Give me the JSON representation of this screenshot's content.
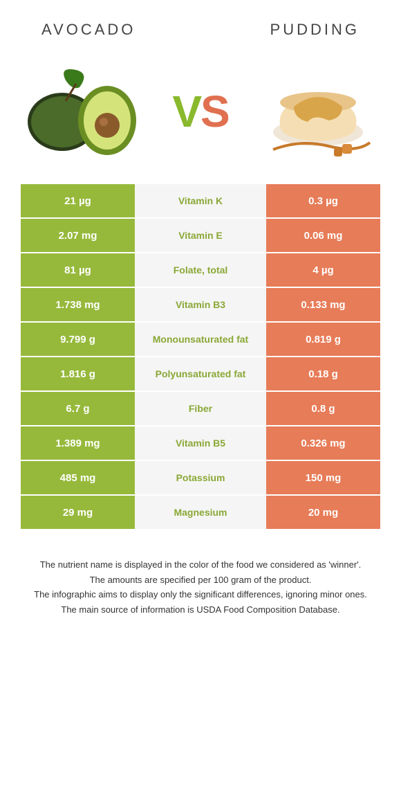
{
  "header": {
    "left": "Avocado",
    "right": "Pudding"
  },
  "vs": {
    "v": "V",
    "s": "S"
  },
  "colors": {
    "left_bg": "#96b93b",
    "right_bg": "#e77c58",
    "mid_bg": "#f5f5f5",
    "winner_left_text": "#8aa836",
    "winner_right_text": "#d86a48"
  },
  "rows": [
    {
      "left": "21 µg",
      "label": "Vitamin K",
      "right": "0.3 µg",
      "winner": "left"
    },
    {
      "left": "2.07 mg",
      "label": "Vitamin E",
      "right": "0.06 mg",
      "winner": "left"
    },
    {
      "left": "81 µg",
      "label": "Folate, total",
      "right": "4 µg",
      "winner": "left"
    },
    {
      "left": "1.738 mg",
      "label": "Vitamin B3",
      "right": "0.133 mg",
      "winner": "left"
    },
    {
      "left": "9.799 g",
      "label": "Monounsaturated fat",
      "right": "0.819 g",
      "winner": "left"
    },
    {
      "left": "1.816 g",
      "label": "Polyunsaturated fat",
      "right": "0.18 g",
      "winner": "left"
    },
    {
      "left": "6.7 g",
      "label": "Fiber",
      "right": "0.8 g",
      "winner": "left"
    },
    {
      "left": "1.389 mg",
      "label": "Vitamin B5",
      "right": "0.326 mg",
      "winner": "left"
    },
    {
      "left": "485 mg",
      "label": "Potassium",
      "right": "150 mg",
      "winner": "left"
    },
    {
      "left": "29 mg",
      "label": "Magnesium",
      "right": "20 mg",
      "winner": "left"
    }
  ],
  "footer": [
    "The nutrient name is displayed in the color of the food we considered as 'winner'.",
    "The amounts are specified per 100 gram of the product.",
    "The infographic aims to display only the significant differences, ignoring minor ones.",
    "The main source of information is USDA Food Composition Database."
  ]
}
